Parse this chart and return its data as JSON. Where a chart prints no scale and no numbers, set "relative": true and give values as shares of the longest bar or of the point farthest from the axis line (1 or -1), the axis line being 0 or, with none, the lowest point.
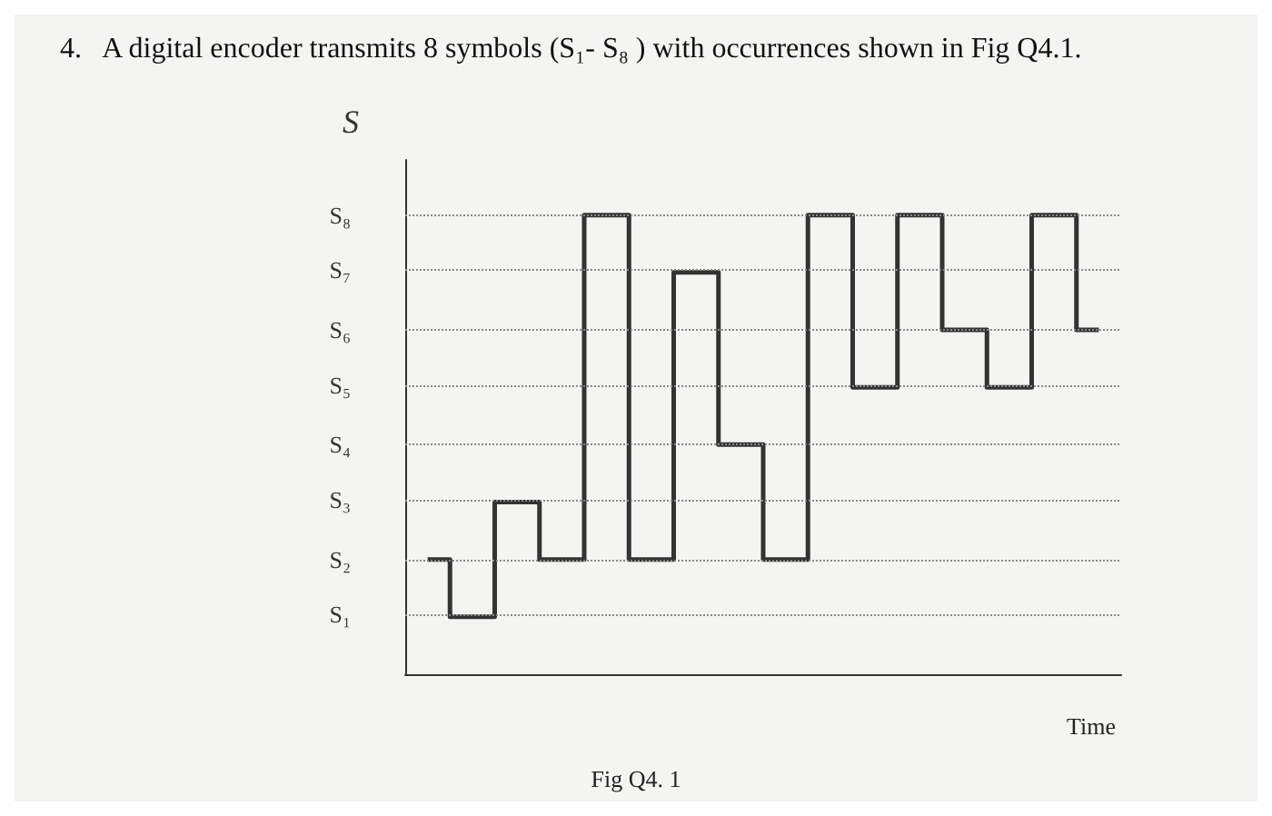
{
  "chart_data": {
    "type": "step",
    "title": "4.   A digital encoder transmits 8 symbols (S₁- S₈ ) with occurrences shown in Fig Q4.1.",
    "xlabel": "Time",
    "ylabel": "S",
    "annotations": [
      "Fig Q4. 1"
    ],
    "categories": [
      null,
      null,
      null,
      null,
      null,
      null,
      null,
      null,
      null,
      null,
      null,
      null,
      null,
      null,
      null,
      null
    ],
    "series": [
      {
        "color": "#333333",
        "values": [
          0.25,
          0.125,
          0.375,
          0.25,
          1,
          0.25,
          0.875,
          0.5,
          0.25,
          1,
          0.625,
          1,
          0.75,
          0.625,
          1,
          0.75
        ]
      }
    ],
    "relative": true,
    "ref_lines": [
      {
        "axis": "y",
        "value": 0.125,
        "label": "S₁",
        "line_style": "dotted"
      },
      {
        "axis": "y",
        "value": 0.25,
        "label": "S₂",
        "line_style": "dotted"
      },
      {
        "axis": "y",
        "value": 0.375,
        "label": "S₃",
        "line_style": "dotted"
      },
      {
        "axis": "y",
        "value": 0.5,
        "label": "S₄",
        "line_style": "dotted"
      },
      {
        "axis": "y",
        "value": 0.625,
        "label": "S₅",
        "line_style": "dotted"
      },
      {
        "axis": "y",
        "value": 0.75,
        "label": "S₆",
        "line_style": "dotted"
      },
      {
        "axis": "y",
        "value": 0.875,
        "label": "S₇",
        "line_style": "dotted"
      },
      {
        "axis": "y",
        "value": 1,
        "label": "S₈",
        "line_style": "dotted"
      }
    ],
    "line_style": "solid",
    "marker": "none"
  }
}
